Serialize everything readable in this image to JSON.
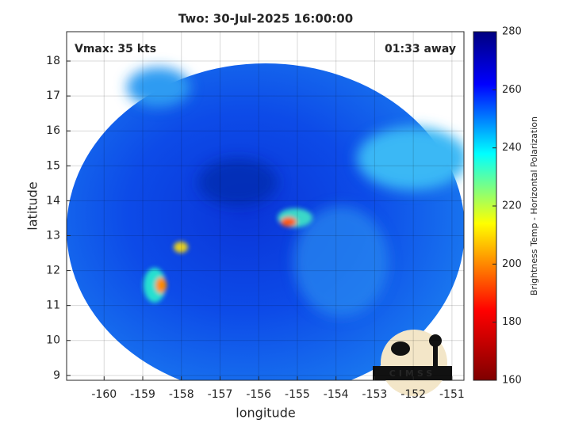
{
  "chart_data": {
    "type": "map",
    "title": "Two: 30-Jul-2025 16:00:00",
    "annotations": [
      "Vmax: 35 kts",
      "01:33 away"
    ],
    "xlabel": "longitude",
    "ylabel": "latitude",
    "xlim": [
      -160.97,
      -150.69
    ],
    "ylim": [
      8.86,
      18.84
    ],
    "xticks": [
      -160,
      -159,
      -158,
      -157,
      -156,
      -155,
      -154,
      -153,
      -152,
      -151
    ],
    "yticks": [
      9,
      10,
      11,
      12,
      13,
      14,
      15,
      16,
      17,
      18
    ],
    "grid": true,
    "colorbar": {
      "label": "Brightness Temp - Horizontal Polarization",
      "lim": [
        160,
        280
      ],
      "ticks": [
        160,
        180,
        200,
        220,
        240,
        260,
        280
      ]
    },
    "logo_text": "CIMSS"
  }
}
